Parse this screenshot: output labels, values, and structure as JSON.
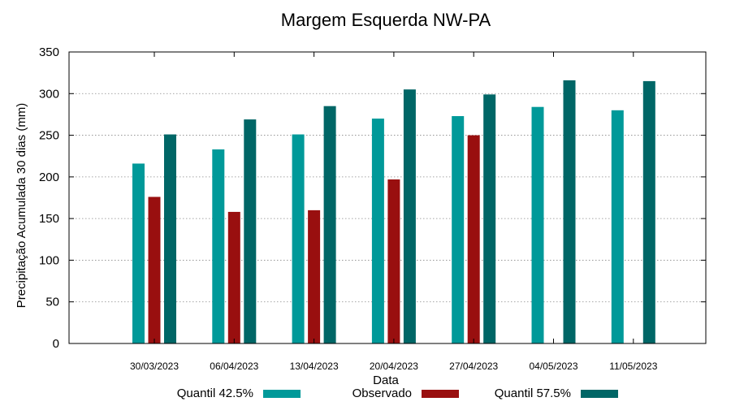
{
  "chart_data": {
    "type": "bar",
    "title": "Margem Esquerda NW-PA",
    "xlabel": "Data",
    "ylabel": "Precipitação Acumulada 30 dias (mm)",
    "ylim": [
      0,
      350
    ],
    "yticks": [
      0,
      50,
      100,
      150,
      200,
      250,
      300,
      350
    ],
    "grid": true,
    "legend_position": "bottom",
    "categories": [
      "30/03/2023",
      "06/04/2023",
      "13/04/2023",
      "20/04/2023",
      "27/04/2023",
      "04/05/2023",
      "11/05/2023"
    ],
    "series": [
      {
        "name": "Quantil 42.5%",
        "color": "#009999",
        "values": [
          216,
          233,
          251,
          270,
          273,
          284,
          280
        ]
      },
      {
        "name": "Observado",
        "color": "#990f0f",
        "values": [
          176,
          158,
          160,
          197,
          250,
          null,
          null
        ]
      },
      {
        "name": "Quantil 57.5%",
        "color": "#006666",
        "values": [
          251,
          269,
          285,
          305,
          299,
          316,
          315
        ]
      }
    ]
  }
}
